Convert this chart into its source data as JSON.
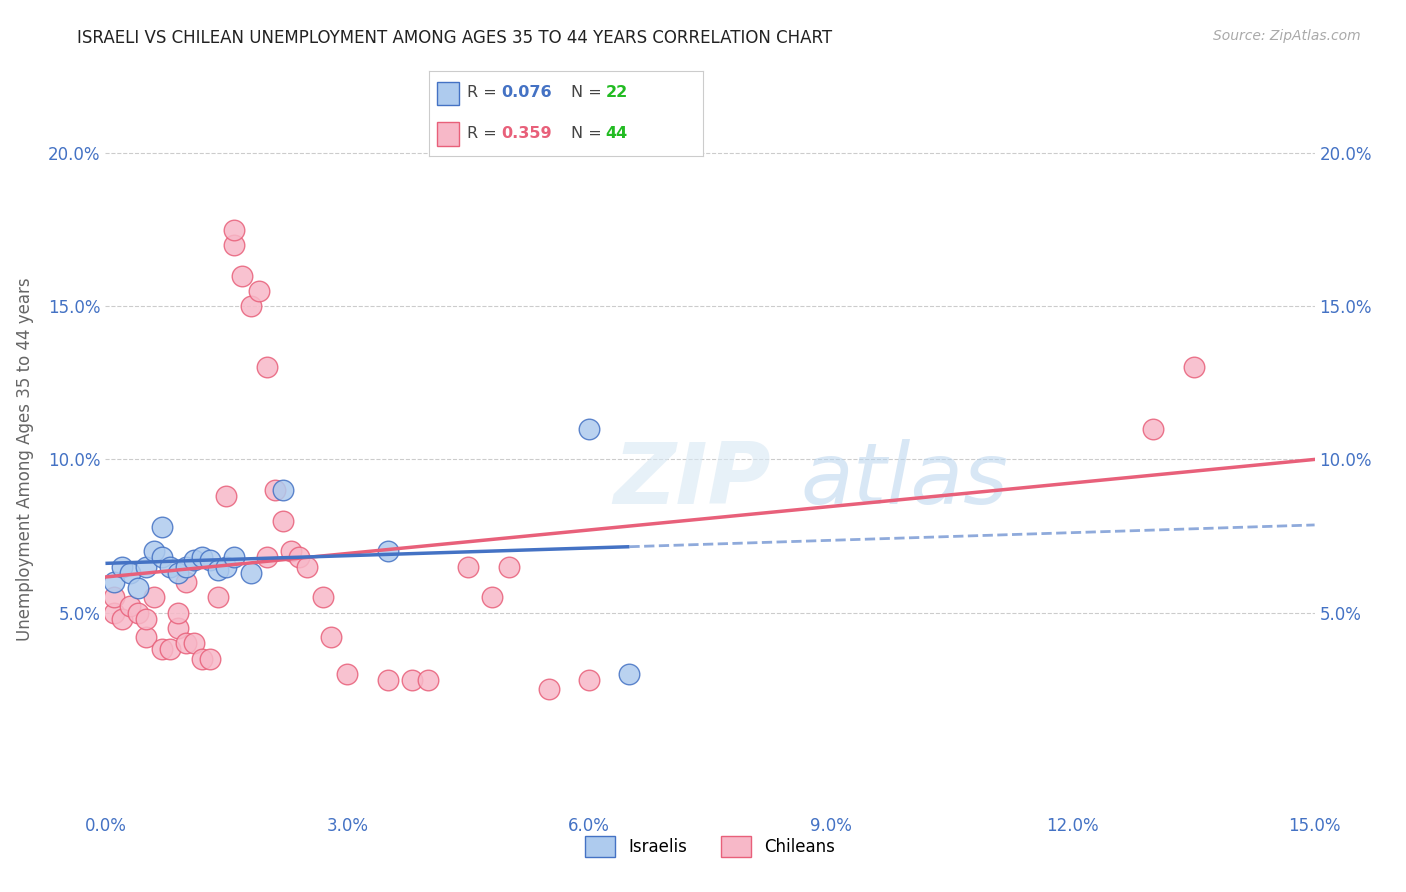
{
  "title": "ISRAELI VS CHILEAN UNEMPLOYMENT AMONG AGES 35 TO 44 YEARS CORRELATION CHART",
  "source": "Source: ZipAtlas.com",
  "ylabel": "Unemployment Among Ages 35 to 44 years",
  "xlim": [
    0.0,
    0.15
  ],
  "ylim": [
    -0.015,
    0.215
  ],
  "yticks": [
    0.05,
    0.1,
    0.15,
    0.2
  ],
  "ytick_labels": [
    "5.0%",
    "10.0%",
    "15.0%",
    "20.0%"
  ],
  "xticks": [
    0.0,
    0.03,
    0.06,
    0.09,
    0.12,
    0.15
  ],
  "xtick_labels": [
    "0.0%",
    "3.0%",
    "6.0%",
    "9.0%",
    "12.0%",
    "15.0%"
  ],
  "legend_r_israeli": "R = 0.076",
  "legend_n_israeli": "N = 22",
  "legend_r_chilean": "R = 0.359",
  "legend_n_chilean": "N = 44",
  "israeli_color": "#aecbee",
  "chilean_color": "#f7b8c8",
  "israeli_line_color": "#4472c4",
  "chilean_line_color": "#e8607a",
  "background_color": "#ffffff",
  "israeli_x": [
    0.001,
    0.002,
    0.003,
    0.004,
    0.005,
    0.006,
    0.007,
    0.007,
    0.008,
    0.009,
    0.01,
    0.011,
    0.012,
    0.013,
    0.014,
    0.015,
    0.016,
    0.018,
    0.022,
    0.035,
    0.06,
    0.065
  ],
  "israeli_y": [
    0.06,
    0.065,
    0.063,
    0.058,
    0.065,
    0.07,
    0.068,
    0.078,
    0.065,
    0.063,
    0.065,
    0.067,
    0.068,
    0.067,
    0.064,
    0.065,
    0.068,
    0.063,
    0.09,
    0.07,
    0.11,
    0.03
  ],
  "chilean_x": [
    0.001,
    0.001,
    0.002,
    0.003,
    0.004,
    0.005,
    0.005,
    0.006,
    0.007,
    0.008,
    0.009,
    0.009,
    0.01,
    0.01,
    0.011,
    0.012,
    0.013,
    0.014,
    0.015,
    0.016,
    0.016,
    0.017,
    0.018,
    0.019,
    0.02,
    0.02,
    0.021,
    0.022,
    0.023,
    0.024,
    0.025,
    0.027,
    0.028,
    0.03,
    0.035,
    0.038,
    0.04,
    0.045,
    0.048,
    0.05,
    0.055,
    0.06,
    0.13,
    0.135
  ],
  "chilean_y": [
    0.05,
    0.055,
    0.048,
    0.052,
    0.05,
    0.042,
    0.048,
    0.055,
    0.038,
    0.038,
    0.045,
    0.05,
    0.06,
    0.04,
    0.04,
    0.035,
    0.035,
    0.055,
    0.088,
    0.17,
    0.175,
    0.16,
    0.15,
    0.155,
    0.13,
    0.068,
    0.09,
    0.08,
    0.07,
    0.068,
    0.065,
    0.055,
    0.042,
    0.03,
    0.028,
    0.028,
    0.028,
    0.065,
    0.055,
    0.065,
    0.025,
    0.028,
    0.11,
    0.13
  ]
}
